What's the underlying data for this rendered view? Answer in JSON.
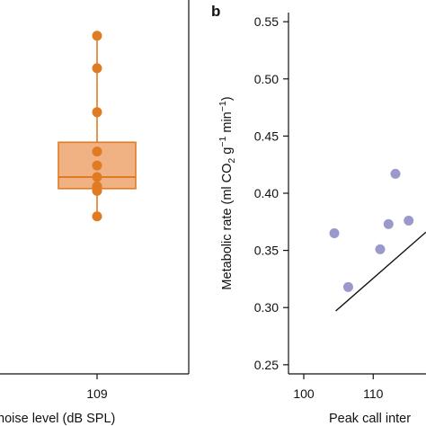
{
  "chart_data": [
    {
      "type": "box",
      "panel": "a",
      "xlabel": "noise level (dB SPL)",
      "categories": [
        "109"
      ],
      "color": "#e07b24",
      "fill_color": "#f0b183",
      "box": {
        "q1": 0.322,
        "median": 0.327,
        "q3": 0.342,
        "whisker_low": 0.31,
        "whisker_high": 0.388
      },
      "points": [
        0.388,
        0.374,
        0.355,
        0.338,
        0.332,
        0.327,
        0.323,
        0.321,
        0.31
      ],
      "ylim": [
        0.242,
        0.398
      ]
    },
    {
      "type": "scatter",
      "panel": "b",
      "panel_label": "b",
      "xlabel": "Peak call inter",
      "ylabel_parts": [
        "Metabolic rate (ml CO",
        "2",
        " g",
        "−1",
        " min",
        "−1",
        ")"
      ],
      "yticks": [
        "0.25",
        "0.30",
        "0.35",
        "0.40",
        "0.45",
        "0.50",
        "0.55"
      ],
      "xticks": [
        "100",
        "110"
      ],
      "ylim": [
        0.242,
        0.558
      ],
      "xlim": [
        97.8,
        117.6
      ],
      "point_color": "#9b98cc",
      "points": [
        {
          "x": 104.4,
          "y": 0.365
        },
        {
          "x": 106.4,
          "y": 0.318
        },
        {
          "x": 111.0,
          "y": 0.351
        },
        {
          "x": 112.2,
          "y": 0.373
        },
        {
          "x": 113.2,
          "y": 0.417
        },
        {
          "x": 115.1,
          "y": 0.376
        }
      ],
      "fit_line": {
        "x": [
          104.6,
          117.6
        ],
        "y": [
          0.297,
          0.366
        ]
      }
    }
  ]
}
